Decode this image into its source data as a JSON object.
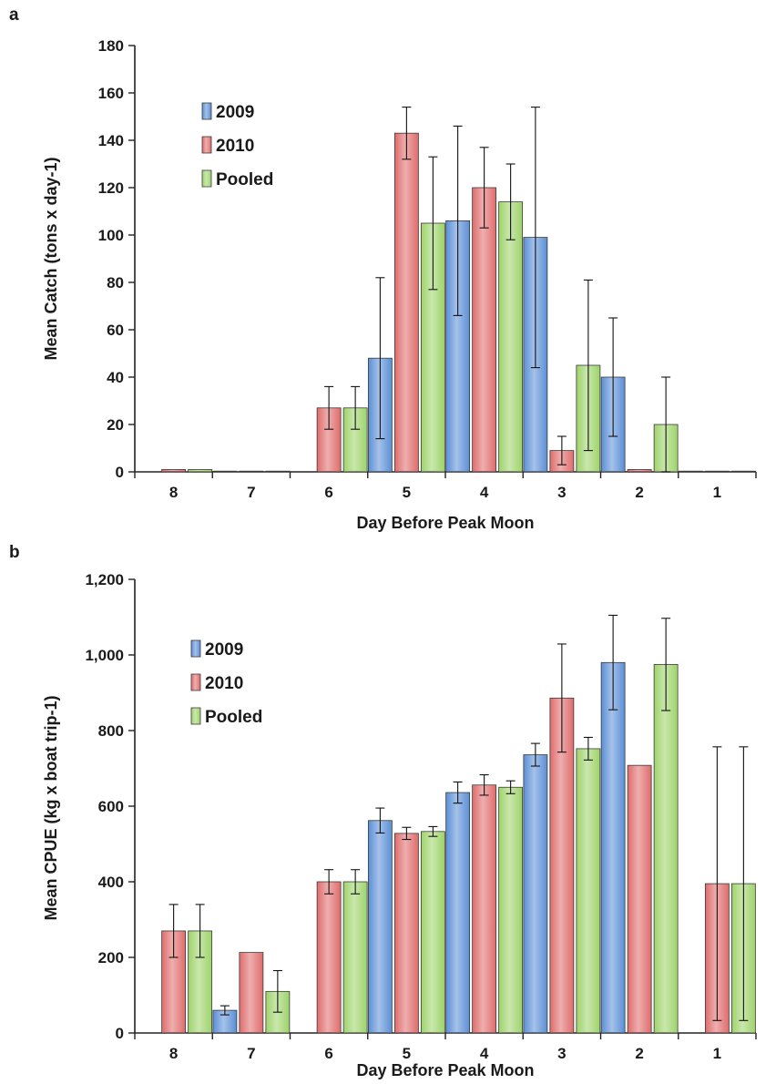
{
  "chart_data": [
    {
      "panel_label": "a",
      "type": "bar",
      "xlabel": "Day Before Peak Moon",
      "ylabel": "Mean Catch (tons x day-1)",
      "ylim": [
        0,
        180
      ],
      "yticks": [
        0,
        20,
        40,
        60,
        80,
        100,
        120,
        140,
        160,
        180
      ],
      "ytick_labels": [
        "0",
        "20",
        "40",
        "60",
        "80",
        "100",
        "120",
        "140",
        "160",
        "180"
      ],
      "categories": [
        "8",
        "7",
        "6",
        "5",
        "4",
        "3",
        "2",
        "1"
      ],
      "legend_position": "upper-left",
      "grid": false,
      "series": [
        {
          "name": "2009",
          "color": "#5b8fd6",
          "values": [
            null,
            0,
            null,
            48,
            106,
            99,
            40,
            0
          ],
          "errors": [
            null,
            0,
            null,
            34,
            40,
            55,
            25,
            0
          ]
        },
        {
          "name": "2010",
          "color": "#e06c6c",
          "values": [
            1,
            0,
            27,
            143,
            120,
            9,
            1,
            0
          ],
          "errors": [
            0,
            0,
            9,
            11,
            17,
            6,
            0,
            0
          ]
        },
        {
          "name": "Pooled",
          "color": "#9ed36a",
          "values": [
            1,
            0,
            27,
            105,
            114,
            45,
            20,
            0
          ],
          "errors": [
            0,
            0,
            9,
            28,
            16,
            36,
            20,
            0
          ]
        }
      ]
    },
    {
      "panel_label": "b",
      "type": "bar",
      "xlabel": "Day Before Peak Moon",
      "ylabel": "Mean CPUE (kg x boat trip-1)",
      "ylim": [
        0,
        1200
      ],
      "yticks": [
        0,
        200,
        400,
        600,
        800,
        1000,
        1200
      ],
      "ytick_labels": [
        "0",
        "200",
        "400",
        "600",
        "800",
        "1,000",
        "1,200"
      ],
      "categories": [
        "8",
        "7",
        "6",
        "5",
        "4",
        "3",
        "2",
        "1"
      ],
      "legend_position": "upper-left",
      "grid": false,
      "series": [
        {
          "name": "2009",
          "color": "#5b8fd6",
          "values": [
            null,
            60,
            null,
            562,
            636,
            736,
            980,
            null
          ],
          "errors": [
            null,
            12,
            null,
            33,
            28,
            30,
            125,
            null
          ]
        },
        {
          "name": "2010",
          "color": "#e06c6c",
          "values": [
            270,
            213,
            400,
            528,
            656,
            886,
            708,
            395
          ],
          "errors": [
            70,
            0,
            32,
            16,
            27,
            143,
            0,
            362
          ]
        },
        {
          "name": "Pooled",
          "color": "#9ed36a",
          "values": [
            270,
            110,
            400,
            533,
            650,
            752,
            975,
            395
          ],
          "errors": [
            70,
            55,
            32,
            13,
            17,
            30,
            122,
            362
          ]
        }
      ]
    }
  ]
}
